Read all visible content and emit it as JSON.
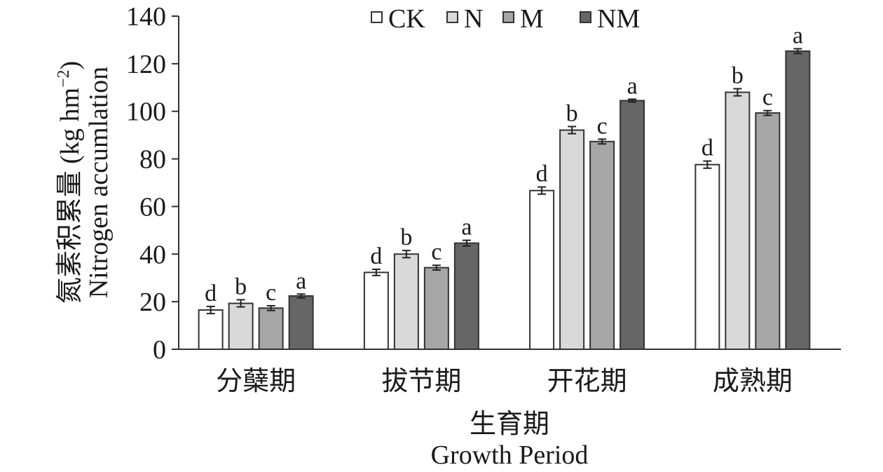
{
  "chart_data": {
    "type": "bar",
    "categories": [
      "分蘖期",
      "拔节期",
      "开花期",
      "成熟期"
    ],
    "series": [
      {
        "name": "CK",
        "color": "#ffffff",
        "values": [
          16.5,
          32.3,
          66.7,
          77.6
        ],
        "errors": [
          1.5,
          1.3,
          1.5,
          1.5
        ],
        "sig": [
          "d",
          "d",
          "d",
          "d"
        ]
      },
      {
        "name": "N",
        "color": "#d9d9d9",
        "values": [
          19.3,
          40.0,
          92.1,
          108.0
        ],
        "errors": [
          1.5,
          1.5,
          1.5,
          1.5
        ],
        "sig": [
          "b",
          "b",
          "b",
          "b"
        ]
      },
      {
        "name": "M",
        "color": "#a6a6a6",
        "values": [
          17.3,
          34.3,
          87.3,
          99.3
        ],
        "errors": [
          1.0,
          1.0,
          1.0,
          1.0
        ],
        "sig": [
          "c",
          "c",
          "c",
          "c"
        ]
      },
      {
        "name": "NM",
        "color": "#666666",
        "values": [
          22.4,
          44.6,
          104.5,
          125.3
        ],
        "errors": [
          0.8,
          1.2,
          0.6,
          1.0
        ],
        "sig": [
          "a",
          "a",
          "a",
          "a"
        ]
      }
    ],
    "ylim": [
      0,
      140
    ],
    "yticks": [
      0,
      20,
      40,
      60,
      80,
      100,
      120,
      140
    ],
    "ylabel_cn": "氮素积累量 (kg hm",
    "ylabel_sup": "−2",
    "ylabel_close": ")",
    "ylabel_en": "Nitrogen accumlation",
    "xlabel_cn": "生育期",
    "xlabel_en": "Growth Period",
    "legend_position": "top",
    "grid": false
  }
}
